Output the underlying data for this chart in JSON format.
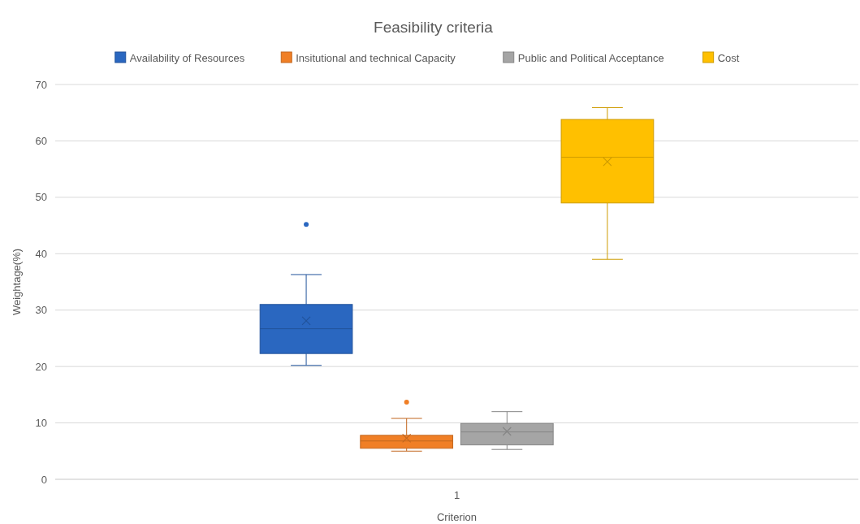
{
  "chart_data": {
    "type": "box",
    "title": "Feasibility criteria",
    "xlabel": "Criterion",
    "ylabel": "Weightage(%)",
    "categories": [
      "1"
    ],
    "series": [
      {
        "name": "Availability of Resources",
        "color": "#2a67c0",
        "boxes": [
          {
            "low": 20.2,
            "q1": 22.3,
            "median": 26.7,
            "q3": 31.0,
            "high": 36.3,
            "mean": 28.1,
            "outliers": [
              45.2
            ]
          }
        ]
      },
      {
        "name": "Insitutional and technical Capacity",
        "color": "#f07f26",
        "boxes": [
          {
            "low": 5.0,
            "q1": 5.5,
            "median": 6.8,
            "q3": 7.8,
            "high": 10.8,
            "mean": 7.3,
            "outliers": [
              13.7
            ]
          }
        ]
      },
      {
        "name": "Public and Political Acceptance",
        "color": "#a5a5a5",
        "boxes": [
          {
            "low": 5.3,
            "q1": 6.1,
            "median": 8.4,
            "q3": 9.9,
            "high": 12.0,
            "mean": 8.5
          }
        ]
      },
      {
        "name": "Cost",
        "color": "#ffc000",
        "boxes": [
          {
            "low": 39.0,
            "q1": 49.0,
            "median": 57.1,
            "q3": 63.8,
            "high": 65.9,
            "mean": 56.3
          }
        ]
      }
    ],
    "ylim": [
      0,
      70
    ],
    "yticks": [
      0,
      10,
      20,
      30,
      40,
      50,
      60,
      70
    ],
    "grid": "y",
    "legend": "top"
  }
}
